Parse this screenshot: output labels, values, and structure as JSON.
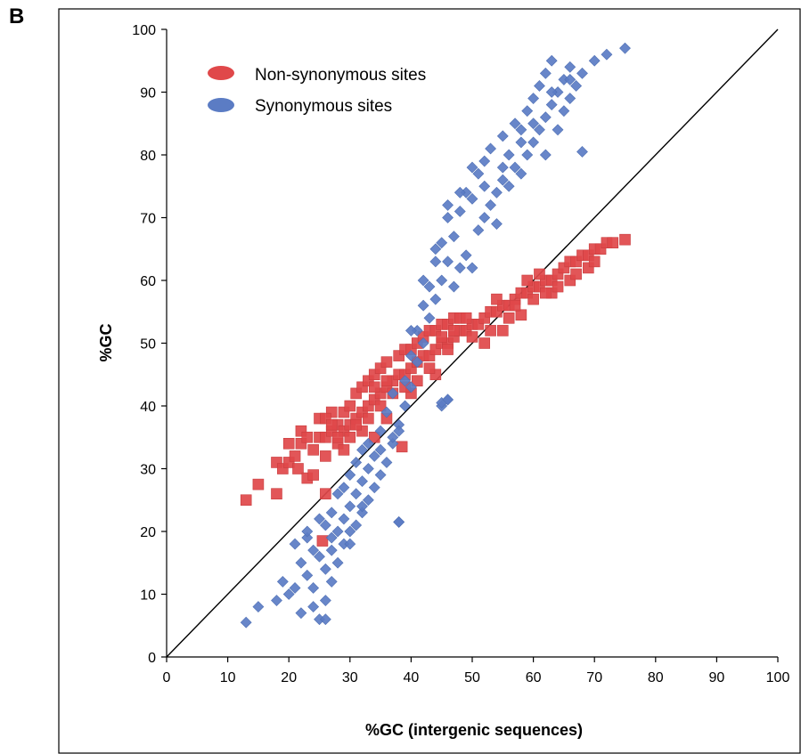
{
  "panel_label": "B",
  "chart_data": {
    "type": "scatter",
    "xlabel": "%GC (intergenic sequences)",
    "ylabel": "%GC",
    "xlim": [
      0,
      100
    ],
    "ylim": [
      0,
      100
    ],
    "x_ticks": [
      "0",
      "10",
      "20",
      "30",
      "40",
      "50",
      "60",
      "70",
      "80",
      "90",
      "100"
    ],
    "y_ticks": [
      "0",
      "10",
      "20",
      "30",
      "40",
      "50",
      "60",
      "70",
      "80",
      "90",
      "100"
    ],
    "grid": false,
    "legend_position": "top-left",
    "reference_line": {
      "from": [
        0,
        0
      ],
      "to": [
        100,
        100
      ]
    },
    "series": [
      {
        "name": "Non-synonymous sites",
        "marker": "square",
        "color": "#E0484A",
        "points": [
          [
            13,
            25
          ],
          [
            15,
            27.5
          ],
          [
            18,
            26
          ],
          [
            26,
            26
          ],
          [
            25.5,
            18.5
          ],
          [
            38.5,
            33.5
          ],
          [
            18,
            31
          ],
          [
            19,
            30
          ],
          [
            20,
            31
          ],
          [
            20,
            34
          ],
          [
            21,
            32
          ],
          [
            21.5,
            30
          ],
          [
            22,
            36
          ],
          [
            23,
            28.5
          ],
          [
            24,
            29
          ],
          [
            24,
            33
          ],
          [
            25,
            35
          ],
          [
            25,
            38
          ],
          [
            26,
            32
          ],
          [
            26,
            35
          ],
          [
            27,
            36
          ],
          [
            27,
            39
          ],
          [
            28,
            34
          ],
          [
            28,
            37
          ],
          [
            29,
            36
          ],
          [
            29,
            39
          ],
          [
            30,
            37
          ],
          [
            30,
            40
          ],
          [
            31,
            38
          ],
          [
            31,
            42
          ],
          [
            32,
            39
          ],
          [
            32,
            43
          ],
          [
            33,
            40
          ],
          [
            33,
            44
          ],
          [
            34,
            41
          ],
          [
            34,
            45
          ],
          [
            35,
            42
          ],
          [
            35,
            46
          ],
          [
            36,
            43
          ],
          [
            36,
            47
          ],
          [
            37,
            44
          ],
          [
            38,
            45
          ],
          [
            38,
            48
          ],
          [
            39,
            45
          ],
          [
            39,
            49
          ],
          [
            40,
            46
          ],
          [
            40,
            49
          ],
          [
            41,
            47
          ],
          [
            41,
            50
          ],
          [
            42,
            48
          ],
          [
            42,
            51
          ],
          [
            43,
            48
          ],
          [
            43,
            52
          ],
          [
            44,
            49
          ],
          [
            44,
            52
          ],
          [
            45,
            50
          ],
          [
            45,
            53
          ],
          [
            46,
            50
          ],
          [
            46,
            53
          ],
          [
            47,
            51
          ],
          [
            47,
            54
          ],
          [
            48,
            52
          ],
          [
            48,
            54
          ],
          [
            49,
            52
          ],
          [
            50,
            53
          ],
          [
            51,
            53
          ],
          [
            52,
            54
          ],
          [
            53,
            55
          ],
          [
            54,
            55
          ],
          [
            55,
            56
          ],
          [
            56,
            56
          ],
          [
            57,
            57
          ],
          [
            58,
            58
          ],
          [
            59,
            58
          ],
          [
            60,
            59
          ],
          [
            61,
            59
          ],
          [
            62,
            60
          ],
          [
            63,
            60
          ],
          [
            64,
            61
          ],
          [
            65,
            62
          ],
          [
            66,
            63
          ],
          [
            67,
            63
          ],
          [
            68,
            64
          ],
          [
            69,
            64
          ],
          [
            70,
            65
          ],
          [
            71,
            65
          ],
          [
            72,
            66
          ],
          [
            73,
            66
          ],
          [
            75,
            66.5
          ],
          [
            58,
            54.5
          ],
          [
            52,
            50
          ],
          [
            55,
            52
          ],
          [
            44,
            45
          ],
          [
            40,
            42
          ],
          [
            36,
            38
          ],
          [
            34,
            35
          ],
          [
            32,
            36
          ],
          [
            30,
            35
          ],
          [
            28,
            35
          ],
          [
            29,
            33
          ],
          [
            33,
            38
          ],
          [
            35,
            40
          ],
          [
            37,
            42
          ],
          [
            39,
            43
          ],
          [
            41,
            44
          ],
          [
            43,
            46
          ],
          [
            46,
            49
          ],
          [
            50,
            51
          ],
          [
            53,
            52
          ],
          [
            56,
            54
          ],
          [
            60,
            57
          ],
          [
            63,
            58
          ],
          [
            66,
            60
          ],
          [
            69,
            62
          ],
          [
            62,
            58
          ],
          [
            64,
            59
          ],
          [
            67,
            61
          ],
          [
            70,
            63
          ],
          [
            22,
            34
          ],
          [
            23,
            35
          ],
          [
            26,
            38
          ],
          [
            27,
            37
          ],
          [
            31,
            37
          ],
          [
            34,
            43
          ],
          [
            36,
            44
          ],
          [
            45,
            51
          ],
          [
            47,
            52
          ],
          [
            49,
            54
          ],
          [
            54,
            57
          ],
          [
            57,
            56
          ],
          [
            59,
            60
          ],
          [
            61,
            61
          ]
        ]
      },
      {
        "name": "Synonymous sites",
        "marker": "diamond",
        "color": "#5B7CC4",
        "points": [
          [
            13,
            5.5
          ],
          [
            15,
            8
          ],
          [
            18,
            9
          ],
          [
            19,
            12
          ],
          [
            20,
            10
          ],
          [
            21,
            11
          ],
          [
            22,
            7
          ],
          [
            22,
            15
          ],
          [
            23,
            13
          ],
          [
            23,
            19
          ],
          [
            24,
            8
          ],
          [
            24,
            11
          ],
          [
            25,
            6
          ],
          [
            25,
            16
          ],
          [
            26,
            9
          ],
          [
            26,
            14
          ],
          [
            26,
            21
          ],
          [
            27,
            12
          ],
          [
            27,
            17
          ],
          [
            27,
            23
          ],
          [
            28,
            15
          ],
          [
            28,
            20
          ],
          [
            28,
            26
          ],
          [
            29,
            18
          ],
          [
            29,
            22
          ],
          [
            29,
            27
          ],
          [
            30,
            20
          ],
          [
            30,
            24
          ],
          [
            30,
            29
          ],
          [
            31,
            21
          ],
          [
            31,
            26
          ],
          [
            31,
            31
          ],
          [
            32,
            23
          ],
          [
            32,
            28
          ],
          [
            32,
            33
          ],
          [
            33,
            25
          ],
          [
            33,
            30
          ],
          [
            33,
            34
          ],
          [
            34,
            27
          ],
          [
            34,
            32
          ],
          [
            35,
            29
          ],
          [
            35,
            36
          ],
          [
            36,
            31
          ],
          [
            36,
            39
          ],
          [
            37,
            34
          ],
          [
            37,
            42
          ],
          [
            38,
            21.5
          ],
          [
            38,
            37
          ],
          [
            39,
            40
          ],
          [
            39,
            44
          ],
          [
            40,
            43
          ],
          [
            40,
            48
          ],
          [
            41,
            47
          ],
          [
            41,
            52
          ],
          [
            42,
            50
          ],
          [
            42,
            56
          ],
          [
            43,
            54
          ],
          [
            43,
            59
          ],
          [
            44,
            57
          ],
          [
            44,
            63
          ],
          [
            45,
            60
          ],
          [
            45,
            66
          ],
          [
            45,
            40
          ],
          [
            46,
            41
          ],
          [
            46,
            63
          ],
          [
            46,
            70
          ],
          [
            47,
            59
          ],
          [
            47,
            67
          ],
          [
            48,
            62
          ],
          [
            48,
            71
          ],
          [
            49,
            64
          ],
          [
            49,
            74
          ],
          [
            50,
            62
          ],
          [
            50,
            73
          ],
          [
            51,
            68
          ],
          [
            51,
            77
          ],
          [
            52,
            70
          ],
          [
            52,
            79
          ],
          [
            53,
            72
          ],
          [
            53,
            81
          ],
          [
            54,
            74
          ],
          [
            54,
            69
          ],
          [
            55,
            76
          ],
          [
            55,
            83
          ],
          [
            56,
            75
          ],
          [
            56,
            80
          ],
          [
            57,
            78
          ],
          [
            57,
            85
          ],
          [
            58,
            77
          ],
          [
            58,
            84
          ],
          [
            59,
            80
          ],
          [
            59,
            87
          ],
          [
            60,
            82
          ],
          [
            60,
            89
          ],
          [
            61,
            84
          ],
          [
            61,
            91
          ],
          [
            62,
            80
          ],
          [
            62,
            86
          ],
          [
            62,
            93
          ],
          [
            63,
            88
          ],
          [
            63,
            95
          ],
          [
            64,
            84
          ],
          [
            64,
            90
          ],
          [
            65,
            87
          ],
          [
            65,
            92
          ],
          [
            66,
            89
          ],
          [
            66,
            94
          ],
          [
            67,
            91
          ],
          [
            68,
            80.5
          ],
          [
            68,
            93
          ],
          [
            70,
            95
          ],
          [
            72,
            96
          ],
          [
            75,
            97
          ],
          [
            26,
            6
          ],
          [
            38,
            21.5
          ],
          [
            45,
            40.5
          ],
          [
            46,
            41
          ],
          [
            21,
            18
          ],
          [
            23,
            20
          ],
          [
            24,
            17
          ],
          [
            25,
            22
          ],
          [
            27,
            19
          ],
          [
            30,
            18
          ],
          [
            32,
            24
          ],
          [
            35,
            33
          ],
          [
            37,
            35
          ],
          [
            38,
            36
          ],
          [
            40,
            52
          ],
          [
            42,
            60
          ],
          [
            44,
            65
          ],
          [
            46,
            72
          ],
          [
            48,
            74
          ],
          [
            50,
            78
          ],
          [
            52,
            75
          ],
          [
            55,
            78
          ],
          [
            58,
            82
          ],
          [
            60,
            85
          ],
          [
            63,
            90
          ],
          [
            66,
            92
          ]
        ]
      }
    ]
  }
}
